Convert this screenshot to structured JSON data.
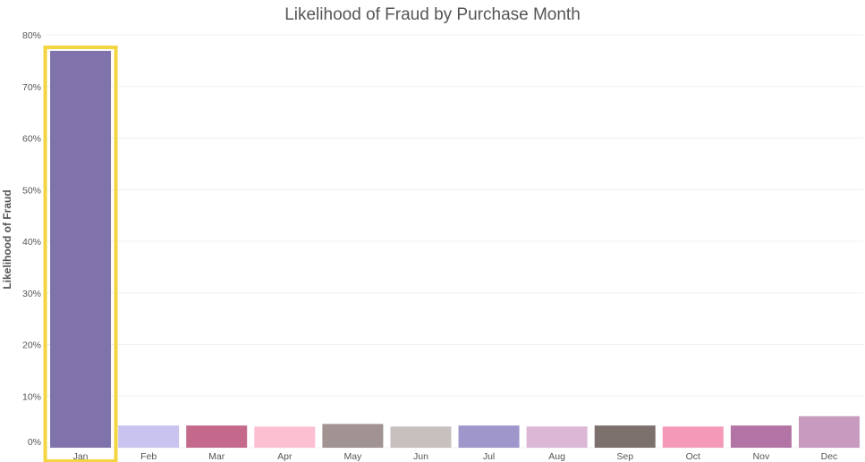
{
  "chart_data": {
    "type": "bar",
    "title": "Likelihood of Fraud by Purchase Month",
    "xlabel": "",
    "ylabel": "Likelihood of Fraud",
    "ylim": [
      0,
      80
    ],
    "y_ticks": [
      0,
      10,
      20,
      30,
      40,
      50,
      60,
      70,
      80
    ],
    "y_tick_labels": [
      "0%",
      "10%",
      "20%",
      "30%",
      "40%",
      "50%",
      "60%",
      "70%",
      "80%"
    ],
    "categories": [
      "Jan",
      "Feb",
      "Mar",
      "Apr",
      "May",
      "Jun",
      "Jul",
      "Aug",
      "Sep",
      "Oct",
      "Nov",
      "Dec"
    ],
    "values": [
      76.9,
      4.3,
      4.3,
      4.1,
      4.6,
      4.1,
      4.3,
      4.1,
      4.3,
      4.1,
      4.3,
      6.1
    ],
    "colors": [
      "#8073ac",
      "#c9c3f0",
      "#c4698b",
      "#fcbfd2",
      "#a09391",
      "#c7c0be",
      "#9f96cc",
      "#dcb7d6",
      "#7c706d",
      "#f49ab8",
      "#b274a4",
      "#c99abf"
    ],
    "highlight": {
      "category": "Jan",
      "color": "#f2d541"
    },
    "grid": true
  }
}
